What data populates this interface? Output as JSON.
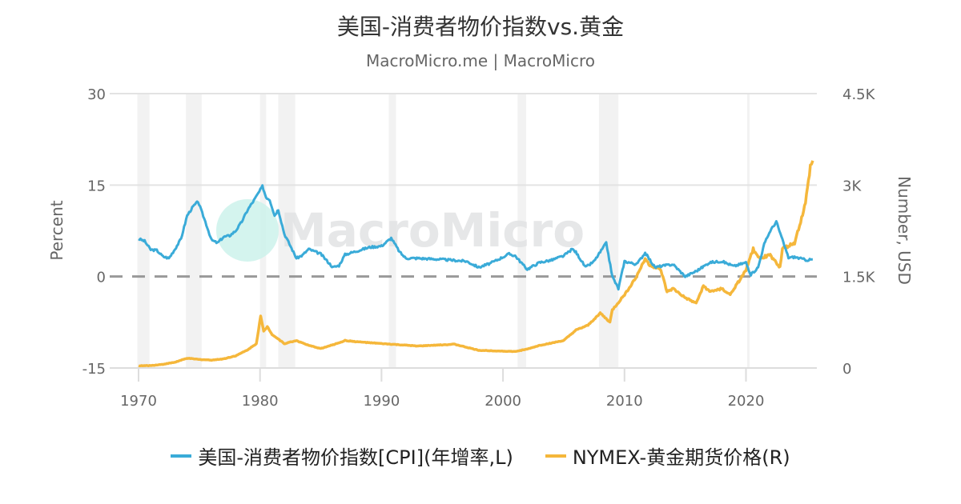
{
  "header": {
    "title": "美国-消费者物价指数vs.黄金",
    "subtitle": "MacroMicro.me | MacroMicro"
  },
  "watermark": "MacroMicro",
  "chart_data": {
    "type": "line",
    "title": "美国-消费者物价指数vs.黄金",
    "x_ticks": [
      "1970",
      "1980",
      "1990",
      "2000",
      "2010",
      "2020"
    ],
    "xlim": [
      1970,
      2026
    ],
    "y_left": {
      "label": "Percent",
      "ylim": [
        -15,
        30
      ],
      "ticks": [
        "-15",
        "0",
        "15",
        "30"
      ]
    },
    "y_right": {
      "label": "Number, USD",
      "ylim": [
        0,
        4500
      ],
      "ticks": [
        "0",
        "1.5K",
        "3K",
        "4.5K"
      ]
    },
    "reference_line": {
      "axis": "left",
      "value": 0,
      "style": "dashed"
    },
    "recessions": [
      [
        1969.9,
        1970.9
      ],
      [
        1973.9,
        1975.2
      ],
      [
        1980.0,
        1980.5
      ],
      [
        1981.5,
        1982.9
      ],
      [
        1990.6,
        1991.2
      ],
      [
        2001.2,
        2001.9
      ],
      [
        2007.9,
        2009.5
      ],
      [
        2020.1,
        2020.3
      ]
    ],
    "grid": true,
    "legend_position": "bottom",
    "series": [
      {
        "name": "美国-消费者物价指数[CPI](年增率,L)",
        "axis": "left",
        "color": "#3aabd8",
        "x": [
          1970,
          1970.5,
          1971,
          1971.5,
          1972,
          1972.5,
          1973,
          1973.5,
          1974,
          1974.5,
          1974.9,
          1975.5,
          1976,
          1976.5,
          1977,
          1977.5,
          1978,
          1978.5,
          1979,
          1979.5,
          1980.2,
          1980.5,
          1980.8,
          1981.2,
          1981.5,
          1982,
          1982.5,
          1983,
          1983.5,
          1984,
          1985,
          1986,
          1986.5,
          1987,
          1988,
          1989,
          1990,
          1990.8,
          1991.5,
          1992,
          1993,
          1995,
          1997,
          1998,
          1999,
          2000.5,
          2001,
          2001.8,
          2002,
          2003,
          2004,
          2005,
          2005.7,
          2006,
          2006.8,
          2007.5,
          2008.5,
          2009,
          2009.5,
          2010,
          2011,
          2011.7,
          2012.5,
          2013,
          2014,
          2015,
          2016,
          2017,
          2018,
          2019,
          2020,
          2020.4,
          2021,
          2021.5,
          2022,
          2022.5,
          2023,
          2023.5,
          2024,
          2025,
          2025.5
        ],
        "y": [
          6.2,
          5.8,
          4.4,
          4.3,
          3.3,
          3.0,
          4.5,
          6.2,
          10.0,
          11.5,
          12.3,
          9.0,
          6.0,
          5.5,
          6.5,
          6.7,
          7.5,
          9.0,
          11.0,
          12.5,
          14.8,
          13.0,
          12.6,
          10.0,
          11.0,
          7.0,
          5.0,
          3.0,
          3.5,
          4.5,
          3.7,
          1.5,
          1.8,
          3.6,
          4.2,
          4.8,
          5.0,
          6.3,
          4.0,
          3.0,
          3.0,
          2.8,
          2.5,
          1.5,
          2.2,
          3.7,
          3.4,
          1.6,
          1.2,
          2.3,
          2.7,
          3.4,
          4.5,
          4.0,
          1.5,
          2.5,
          5.5,
          0.0,
          -2.0,
          2.5,
          2.0,
          3.9,
          1.5,
          1.7,
          2.0,
          0.0,
          1.0,
          2.3,
          2.5,
          1.7,
          2.3,
          0.3,
          1.5,
          5.3,
          7.5,
          9.0,
          6.0,
          3.1,
          3.2,
          2.7,
          2.8
        ]
      },
      {
        "name": "NYMEX-黄金期货价格(R)",
        "axis": "right",
        "color": "#f5b73b",
        "x": [
          1970,
          1971,
          1972,
          1973,
          1974,
          1975,
          1976,
          1977,
          1978,
          1979,
          1979.7,
          1980.05,
          1980.3,
          1980.6,
          1981,
          1982,
          1983,
          1984,
          1985,
          1986,
          1987,
          1988,
          1990,
          1993,
          1996,
          1998,
          2001,
          2002,
          2003,
          2004,
          2005,
          2006,
          2007,
          2008,
          2008.8,
          2009,
          2010,
          2011,
          2011.7,
          2012,
          2013,
          2013.5,
          2014,
          2015,
          2015.9,
          2016.5,
          2017,
          2018,
          2018.7,
          2019.5,
          2020,
          2020.6,
          2021,
          2022,
          2022.8,
          2023,
          2024,
          2024.5,
          2024.9,
          2025.3,
          2025.5
        ],
        "y": [
          35,
          40,
          60,
          95,
          160,
          140,
          130,
          150,
          200,
          300,
          400,
          850,
          600,
          680,
          550,
          400,
          450,
          370,
          320,
          380,
          450,
          430,
          400,
          360,
          390,
          290,
          270,
          310,
          370,
          410,
          450,
          620,
          700,
          900,
          750,
          950,
          1200,
          1500,
          1800,
          1700,
          1600,
          1250,
          1300,
          1150,
          1060,
          1350,
          1250,
          1300,
          1200,
          1450,
          1600,
          1950,
          1800,
          1850,
          1650,
          1950,
          2050,
          2400,
          2700,
          3300,
          3400
        ]
      }
    ]
  }
}
